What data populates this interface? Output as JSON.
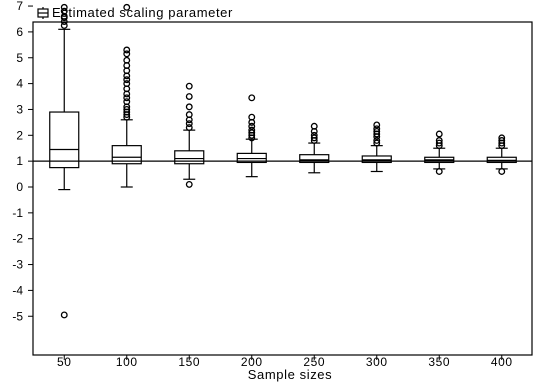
{
  "chart_data": {
    "type": "boxplot",
    "legend": {
      "label": "Estimated scaling parameter",
      "position": "top-left"
    },
    "xlabel": "Sample sizes",
    "ylabel": "",
    "ylim": [
      -5.2,
      7.2
    ],
    "yticks": [
      7,
      6,
      5,
      4,
      3,
      2,
      1,
      0,
      -1,
      -2,
      -3,
      -4,
      -5
    ],
    "reference_line": 1,
    "grid": false,
    "categories": [
      "50",
      "100",
      "150",
      "200",
      "250",
      "300",
      "350",
      "400"
    ],
    "boxes": [
      {
        "min": -0.1,
        "q1": 0.75,
        "median": 1.45,
        "q3": 2.9,
        "max": 6.1,
        "outliers": [
          6.25,
          6.4,
          6.55,
          6.6,
          6.8,
          6.95,
          -4.95
        ]
      },
      {
        "min": 0.0,
        "q1": 0.9,
        "median": 1.15,
        "q3": 1.6,
        "max": 2.6,
        "outliers": [
          2.7,
          2.8,
          2.9,
          3.0,
          3.1,
          3.3,
          3.45,
          3.6,
          3.8,
          4.0,
          4.15,
          4.3,
          4.5,
          4.7,
          4.9,
          5.15,
          5.3,
          6.95
        ]
      },
      {
        "min": 0.3,
        "q1": 0.9,
        "median": 1.1,
        "q3": 1.4,
        "max": 2.2,
        "outliers": [
          2.3,
          2.45,
          2.6,
          2.8,
          3.1,
          3.5,
          3.9,
          0.1
        ]
      },
      {
        "min": 0.4,
        "q1": 0.95,
        "median": 1.1,
        "q3": 1.3,
        "max": 1.85,
        "outliers": [
          1.9,
          2.0,
          2.1,
          2.2,
          2.35,
          2.5,
          2.7,
          3.45
        ]
      },
      {
        "min": 0.55,
        "q1": 0.95,
        "median": 1.05,
        "q3": 1.25,
        "max": 1.7,
        "outliers": [
          1.8,
          1.9,
          2.0,
          2.15,
          2.35
        ]
      },
      {
        "min": 0.6,
        "q1": 0.95,
        "median": 1.05,
        "q3": 1.2,
        "max": 1.6,
        "outliers": [
          1.7,
          1.8,
          1.95,
          2.05,
          2.15,
          2.25,
          2.4
        ]
      },
      {
        "min": 0.7,
        "q1": 0.95,
        "median": 1.05,
        "q3": 1.15,
        "max": 1.5,
        "outliers": [
          1.6,
          1.7,
          1.8,
          2.05,
          0.6
        ]
      },
      {
        "min": 0.7,
        "q1": 0.95,
        "median": 1.03,
        "q3": 1.15,
        "max": 1.5,
        "outliers": [
          1.6,
          1.7,
          1.8,
          1.9,
          0.6
        ]
      }
    ]
  }
}
